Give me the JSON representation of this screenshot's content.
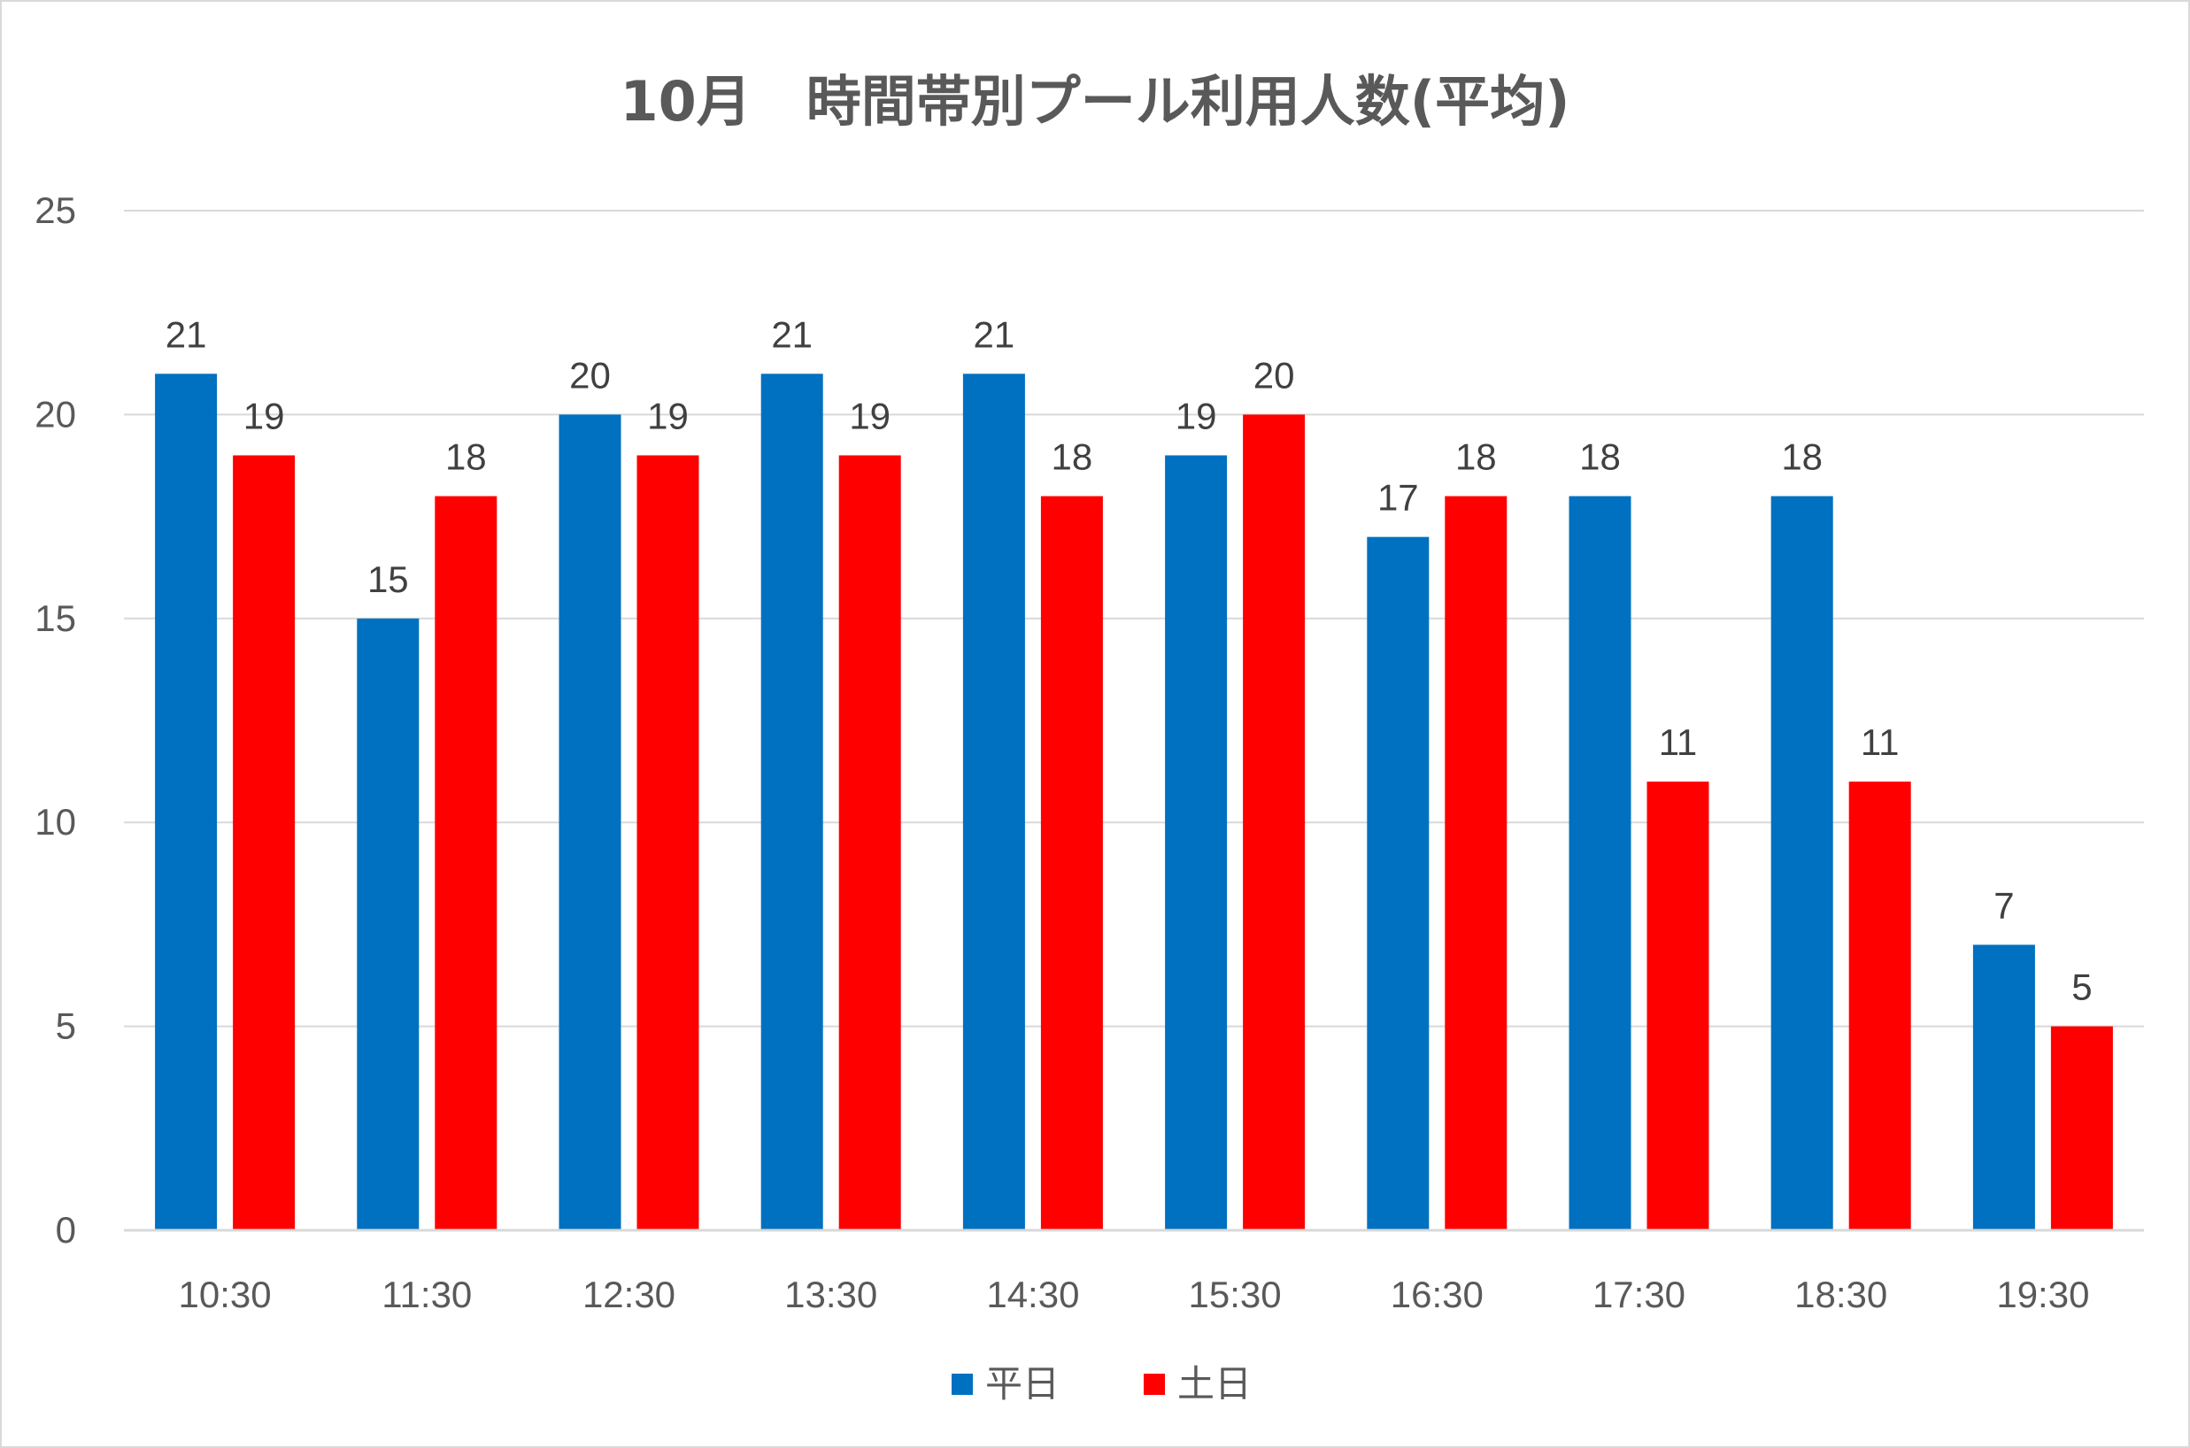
{
  "chart_data": {
    "type": "bar",
    "title": "10月　時間帯別プール利用人数(平均)",
    "categories": [
      "10:30",
      "11:30",
      "12:30",
      "13:30",
      "14:30",
      "15:30",
      "16:30",
      "17:30",
      "18:30",
      "19:30"
    ],
    "series": [
      {
        "name": "平日",
        "color": "#0070c0",
        "values": [
          21,
          15,
          20,
          21,
          21,
          19,
          17,
          18,
          18,
          7
        ]
      },
      {
        "name": "土日",
        "color": "#ff0000",
        "values": [
          19,
          18,
          19,
          19,
          18,
          20,
          18,
          11,
          11,
          5
        ]
      }
    ],
    "ylim": [
      0,
      25
    ],
    "yticks": [
      0,
      5,
      10,
      15,
      20,
      25
    ],
    "xlabel": "",
    "ylabel": "",
    "grid": true,
    "legend": "bottom",
    "data_labels": true
  }
}
